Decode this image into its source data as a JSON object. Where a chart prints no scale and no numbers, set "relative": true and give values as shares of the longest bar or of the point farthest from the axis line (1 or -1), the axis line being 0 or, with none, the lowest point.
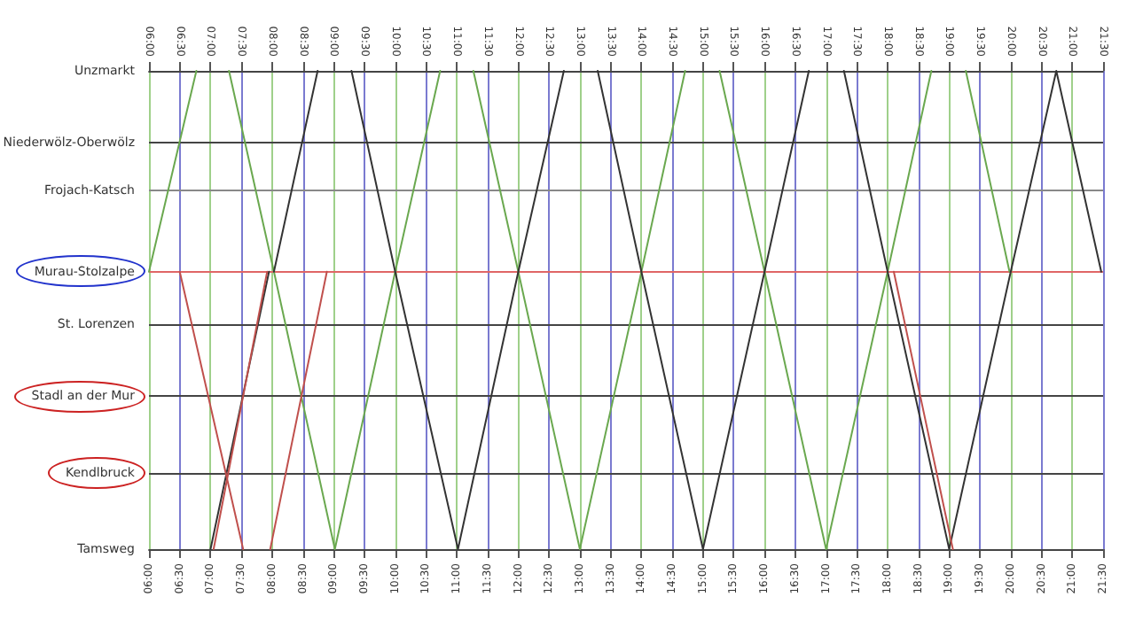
{
  "chart_data": {
    "type": "line",
    "relative": true,
    "xlim": [
      6,
      21.5
    ],
    "x2lim": [
      6,
      21.5
    ],
    "xticks": [
      {
        "value": 6,
        "label": "06:00"
      },
      {
        "value": 6.5,
        "label": "06:30"
      },
      {
        "value": 7,
        "label": "07:00"
      },
      {
        "value": 7.5,
        "label": "07:30"
      },
      {
        "value": 8,
        "label": "08:00"
      },
      {
        "value": 8.5,
        "label": "08:30"
      },
      {
        "value": 9,
        "label": "09:00"
      },
      {
        "value": 9.5,
        "label": "09:30"
      },
      {
        "value": 10,
        "label": "10:00"
      },
      {
        "value": 10.5,
        "label": "10:30"
      },
      {
        "value": 11,
        "label": "11:00"
      },
      {
        "value": 11.5,
        "label": "11:30"
      },
      {
        "value": 12,
        "label": "12:00"
      },
      {
        "value": 12.5,
        "label": "12:30"
      },
      {
        "value": 13,
        "label": "13:00"
      },
      {
        "value": 13.5,
        "label": "13:30"
      },
      {
        "value": 14,
        "label": "14:00"
      },
      {
        "value": 14.5,
        "label": "14:30"
      },
      {
        "value": 15,
        "label": "15:00"
      },
      {
        "value": 15.5,
        "label": "15:30"
      },
      {
        "value": 16,
        "label": "16:00"
      },
      {
        "value": 16.5,
        "label": "16:30"
      },
      {
        "value": 17,
        "label": "17:00"
      },
      {
        "value": 17.5,
        "label": "17:30"
      },
      {
        "value": 18,
        "label": "18:00"
      },
      {
        "value": 18.5,
        "label": "18:30"
      },
      {
        "value": 19,
        "label": "19:00"
      },
      {
        "value": 19.5,
        "label": "19:30"
      },
      {
        "value": 20,
        "label": "20:00"
      },
      {
        "value": 20.5,
        "label": "20:30"
      },
      {
        "value": 21,
        "label": "21:00"
      },
      {
        "value": 21.5,
        "label": "21:30"
      }
    ],
    "x2ticks": [
      {
        "value": 6,
        "label": "06:00"
      },
      {
        "value": 6.5,
        "label": "06:30"
      },
      {
        "value": 7,
        "label": "07:00"
      },
      {
        "value": 7.5,
        "label": "07:30"
      },
      {
        "value": 8,
        "label": "08:00"
      },
      {
        "value": 8.5,
        "label": "08:30"
      },
      {
        "value": 9,
        "label": "09:00"
      },
      {
        "value": 9.5,
        "label": "09:30"
      },
      {
        "value": 10,
        "label": "10:00"
      },
      {
        "value": 10.5,
        "label": "10:30"
      },
      {
        "value": 11,
        "label": "11:00"
      },
      {
        "value": 11.5,
        "label": "11:30"
      },
      {
        "value": 12,
        "label": "12:00"
      },
      {
        "value": 12.5,
        "label": "12:30"
      },
      {
        "value": 13,
        "label": "13:00"
      },
      {
        "value": 13.5,
        "label": "13:30"
      },
      {
        "value": 14,
        "label": "14:00"
      },
      {
        "value": 14.5,
        "label": "14:30"
      },
      {
        "value": 15,
        "label": "15:00"
      },
      {
        "value": 15.5,
        "label": "15:30"
      },
      {
        "value": 16,
        "label": "16:00"
      },
      {
        "value": 16.5,
        "label": "16:30"
      },
      {
        "value": 17,
        "label": "17:00"
      },
      {
        "value": 17.5,
        "label": "17:30"
      },
      {
        "value": 18,
        "label": "18:00"
      },
      {
        "value": 18.5,
        "label": "18:30"
      },
      {
        "value": 19,
        "label": "19:00"
      },
      {
        "value": 19.5,
        "label": "19:30"
      },
      {
        "value": 20,
        "label": "20:00"
      },
      {
        "value": 20.5,
        "label": "20:30"
      },
      {
        "value": 21,
        "label": "21:00"
      },
      {
        "value": 21.5,
        "label": "21:30"
      }
    ],
    "ref_lines": [
      {
        "axis": "y",
        "value": 1,
        "label": "Unzmarkt",
        "color": "#444444"
      },
      {
        "axis": "y",
        "value": 0.85,
        "label": "Niederwölz-Oberwölz",
        "color": "#444444"
      },
      {
        "axis": "y",
        "value": 0.75,
        "label": "Frojach-Katsch",
        "color": "#888888"
      },
      {
        "axis": "y",
        "value": 0.58,
        "label": "Murau-Stolzalpe",
        "color": "#e06666"
      },
      {
        "axis": "y",
        "value": 0.47,
        "label": "St. Lorenzen",
        "color": "#444444"
      },
      {
        "axis": "y",
        "value": 0.32,
        "label": "Stadl an der Mur",
        "color": "#444444"
      },
      {
        "axis": "y",
        "value": 0.16,
        "label": "Kendlbruck",
        "color": "#444444"
      },
      {
        "axis": "y",
        "value": 0,
        "label": "Tamsweg",
        "color": "#444444"
      }
    ],
    "grid": "x",
    "marker": "none",
    "line_style": "solid",
    "series": [
      {
        "color": "#6aa84f",
        "x": [
          6,
          6.77
        ],
        "values": [
          0.58,
          1
        ]
      },
      {
        "color": "#6aa84f",
        "x": [
          7.3,
          8.03,
          9.02,
          10,
          10.73
        ],
        "values": [
          1,
          0.58,
          0,
          0.58,
          1
        ]
      },
      {
        "color": "#6aa84f",
        "x": [
          11.27,
          12,
          13,
          14,
          14.71
        ],
        "values": [
          1,
          0.58,
          0,
          0.58,
          1
        ]
      },
      {
        "color": "#6aa84f",
        "x": [
          15.27,
          16,
          17,
          18,
          18.71
        ],
        "values": [
          1,
          0.58,
          0,
          0.58,
          1
        ]
      },
      {
        "color": "#6aa84f",
        "x": [
          19.27,
          19.98
        ],
        "values": [
          1,
          0.58
        ]
      },
      {
        "color": "#333333",
        "x": [
          7,
          7.95
        ],
        "values": [
          0,
          0.58
        ]
      },
      {
        "color": "#333333",
        "x": [
          8.03,
          8.74
        ],
        "values": [
          0.58,
          1
        ]
      },
      {
        "color": "#333333",
        "x": [
          9.29,
          10,
          11.02,
          12,
          12.74
        ],
        "values": [
          1,
          0.58,
          0,
          0.58,
          1
        ]
      },
      {
        "color": "#333333",
        "x": [
          13.29,
          14,
          15,
          16,
          16.72
        ],
        "values": [
          1,
          0.58,
          0,
          0.58,
          1
        ]
      },
      {
        "color": "#333333",
        "x": [
          17.29,
          18,
          19,
          20,
          20.74,
          21.47
        ],
        "values": [
          1,
          0.58,
          0,
          0.58,
          1,
          0.58
        ]
      },
      {
        "color": "#c0504d",
        "x": [
          6.5,
          7.53
        ],
        "values": [
          0.58,
          0
        ]
      },
      {
        "color": "#c0504d",
        "x": [
          7.05,
          7.92
        ],
        "values": [
          0,
          0.58
        ]
      },
      {
        "color": "#c0504d",
        "x": [
          7.97,
          8.89
        ],
        "values": [
          0,
          0.58
        ]
      },
      {
        "color": "#c0504d",
        "x": [
          18.1,
          19.06
        ],
        "values": [
          0.58,
          0
        ]
      }
    ]
  }
}
